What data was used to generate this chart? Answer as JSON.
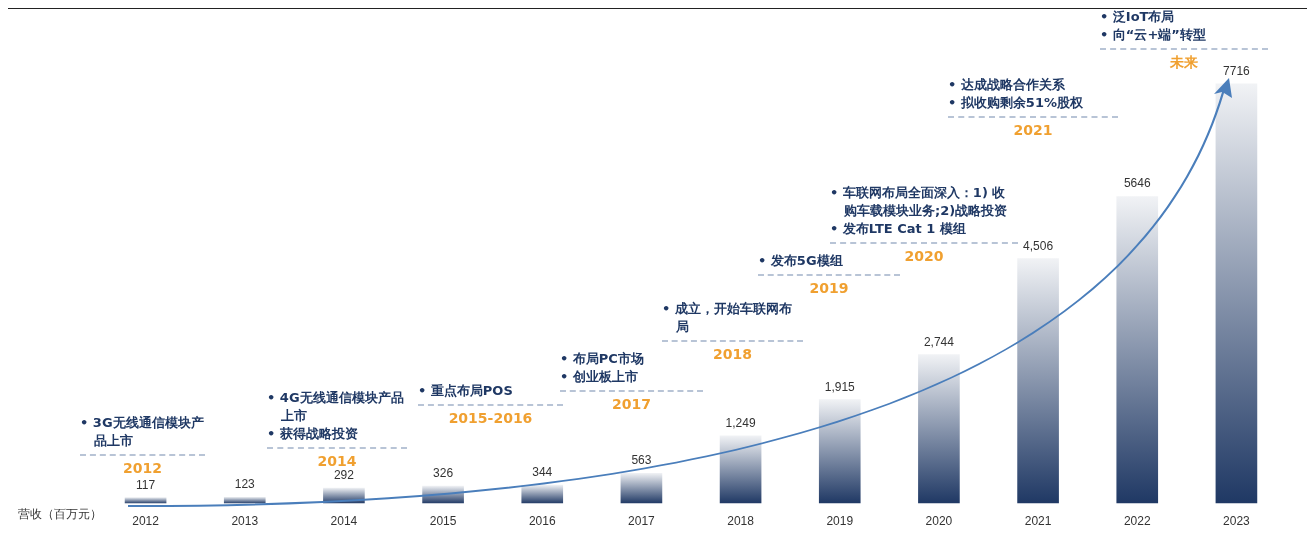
{
  "chart_data": {
    "type": "bar",
    "ylabel": "营收（百万元）",
    "categories": [
      "2012",
      "2013",
      "2014",
      "2015",
      "2016",
      "2017",
      "2018",
      "2019",
      "2020",
      "2021",
      "2022",
      "2023"
    ],
    "series": [
      {
        "color": "#1f3864",
        "values": [
          117,
          123,
          292,
          326,
          344,
          563,
          1249,
          1915,
          2744,
          4506,
          5646,
          7716
        ],
        "value_labels": [
          "117",
          "123",
          "292",
          "326",
          "344",
          "563",
          "1,249",
          "1,915",
          "2,744",
          "4,506",
          "5646",
          "7716"
        ]
      }
    ],
    "legend": false,
    "grid": false,
    "annotations": [
      "• 3G无线通信模块产品上市",
      "2012",
      "• 4G无线通信模块产品上市",
      "• 获得战略投资",
      "2014",
      "• 重点布局POS",
      "2015-2016",
      "• 布局PC市场",
      "• 创业板上市",
      "2017",
      "• 成立，开始车联网布局",
      "2018",
      "• 发布5G模组",
      "2019",
      "• 车联网布局全面深入：1) 收购车载模块业务;2)战略投资",
      "• 发布LTE Cat 1 模组",
      "2020",
      "• 达成战略合作关系",
      "• 拟收购剩余51%股权",
      "2021",
      "• 泛IoT布局",
      "• 向“云+端”转型",
      "未来"
    ]
  }
}
